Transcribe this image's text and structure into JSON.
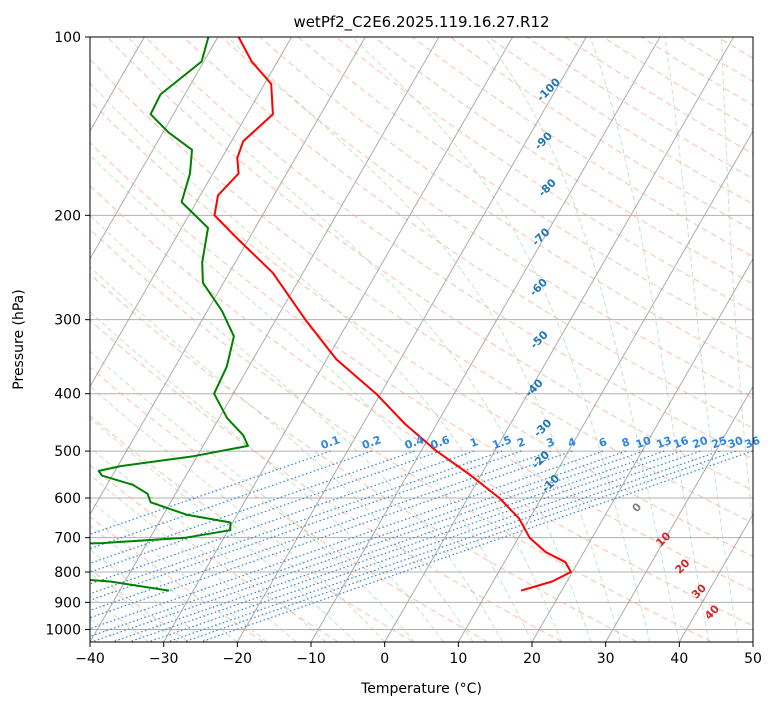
{
  "chart_data": {
    "type": "line",
    "diagram": "skew-T log-P",
    "title": "wetPf2_C2E6.2025.119.16.27.R12",
    "xlabel": "Temperature (°C)",
    "ylabel": "Pressure (hPa)",
    "xlim": [
      -40,
      50
    ],
    "ylim": [
      1050,
      100
    ],
    "y_scale": "log",
    "x_ticks": [
      -40,
      -30,
      -20,
      -10,
      0,
      10,
      20,
      30,
      40,
      50
    ],
    "x_tick_labels": [
      "−40",
      "−30",
      "−20",
      "−10",
      "0",
      "10",
      "20",
      "30",
      "40",
      "50"
    ],
    "y_ticks": [
      100,
      200,
      300,
      400,
      500,
      600,
      700,
      800,
      900,
      1000
    ],
    "y_tick_labels": [
      "100",
      "200",
      "300",
      "400",
      "500",
      "600",
      "700",
      "800",
      "900",
      "1000"
    ],
    "grid": true,
    "dry_adiabat_labels": [
      {
        "text": "-100",
        "p": 123,
        "t": -20.9
      },
      {
        "text": "-90",
        "p": 150,
        "t": -17.6
      },
      {
        "text": "-80",
        "p": 180,
        "t": -13.4
      },
      {
        "text": "-70",
        "p": 218,
        "t": -10.4
      },
      {
        "text": "-60",
        "p": 265,
        "t": -6.8
      },
      {
        "text": "-50",
        "p": 325,
        "t": -2.6
      },
      {
        "text": "-40",
        "p": 392,
        "t": 0.5
      },
      {
        "text": "-30",
        "p": 458,
        "t": 4.8
      },
      {
        "text": "-20",
        "p": 518,
        "t": 7.0
      },
      {
        "text": "-10",
        "p": 568,
        "t": 10.2
      }
    ],
    "moist_adiabat_labels": [
      {
        "text": "0",
        "p": 624,
        "t": 23.8,
        "color": "#7f7f7f"
      },
      {
        "text": "10",
        "p": 706,
        "t": 29.9,
        "color": "#d62728"
      },
      {
        "text": "20",
        "p": 784,
        "t": 34.6,
        "color": "#d62728"
      },
      {
        "text": "30",
        "p": 864,
        "t": 38.8,
        "color": "#d62728"
      },
      {
        "text": "40",
        "p": 937,
        "t": 42.2,
        "color": "#d62728"
      }
    ],
    "mixing_ratio_labels": [
      {
        "text": "0.1",
        "t": -22.3
      },
      {
        "text": "0.2",
        "t": -16.7
      },
      {
        "text": "0.4",
        "t": -10.9
      },
      {
        "text": "0.6",
        "t": -7.4
      },
      {
        "text": "1",
        "t": -2.8
      },
      {
        "text": "1.5",
        "t": 1.0
      },
      {
        "text": "2",
        "t": 3.6
      },
      {
        "text": "3",
        "t": 7.6
      },
      {
        "text": "4",
        "t": 10.5
      },
      {
        "text": "6",
        "t": 14.7
      },
      {
        "text": "8",
        "t": 17.8
      },
      {
        "text": "10",
        "t": 20.2
      },
      {
        "text": "13",
        "t": 23.0
      },
      {
        "text": "16",
        "t": 25.3
      },
      {
        "text": "20",
        "t": 27.9
      },
      {
        "text": "25",
        "t": 30.5
      },
      {
        "text": "30",
        "t": 32.7
      },
      {
        "text": "36",
        "t": 35.0
      }
    ],
    "series": [
      {
        "color": "#ff0000",
        "points": [
          {
            "p": 860,
            "t": 14.5
          },
          {
            "p": 830,
            "t": 18.0
          },
          {
            "p": 800,
            "t": 19.8
          },
          {
            "p": 770,
            "t": 18.3
          },
          {
            "p": 740,
            "t": 14.8
          },
          {
            "p": 700,
            "t": 11.5
          },
          {
            "p": 650,
            "t": 8.6
          },
          {
            "p": 600,
            "t": 4.3
          },
          {
            "p": 550,
            "t": -1.3
          },
          {
            "p": 500,
            "t": -7.9
          },
          {
            "p": 450,
            "t": -14.3
          },
          {
            "p": 400,
            "t": -20.6
          },
          {
            "p": 350,
            "t": -28.7
          },
          {
            "p": 300,
            "t": -36.0
          },
          {
            "p": 250,
            "t": -44.1
          },
          {
            "p": 220,
            "t": -51.3
          },
          {
            "p": 200,
            "t": -56.5
          },
          {
            "p": 185,
            "t": -57.6
          },
          {
            "p": 170,
            "t": -56.5
          },
          {
            "p": 160,
            "t": -57.9
          },
          {
            "p": 150,
            "t": -58.4
          },
          {
            "p": 135,
            "t": -56.5
          },
          {
            "p": 120,
            "t": -59.1
          },
          {
            "p": 110,
            "t": -63.5
          },
          {
            "p": 100,
            "t": -67.2
          }
        ]
      },
      {
        "color": "#008000",
        "points": [
          {
            "p": 860,
            "t": -33.3
          },
          {
            "p": 830,
            "t": -42.0
          },
          {
            "p": 800,
            "t": -60.6
          },
          {
            "p": 790,
            "t": -80.0
          },
          {
            "p": 750,
            "t": -90.0
          },
          {
            "p": 740,
            "t": -74.5
          },
          {
            "p": 725,
            "t": -63.5
          },
          {
            "p": 715,
            "t": -46.1
          },
          {
            "p": 700,
            "t": -35.2
          },
          {
            "p": 680,
            "t": -29.7
          },
          {
            "p": 660,
            "t": -30.3
          },
          {
            "p": 640,
            "t": -36.9
          },
          {
            "p": 610,
            "t": -42.7
          },
          {
            "p": 590,
            "t": -43.8
          },
          {
            "p": 570,
            "t": -46.5
          },
          {
            "p": 550,
            "t": -51.4
          },
          {
            "p": 540,
            "t": -52.2
          },
          {
            "p": 530,
            "t": -49.6
          },
          {
            "p": 510,
            "t": -40.5
          },
          {
            "p": 490,
            "t": -33.9
          },
          {
            "p": 470,
            "t": -35.4
          },
          {
            "p": 440,
            "t": -38.9
          },
          {
            "p": 400,
            "t": -42.6
          },
          {
            "p": 360,
            "t": -43.0
          },
          {
            "p": 320,
            "t": -44.4
          },
          {
            "p": 290,
            "t": -48.0
          },
          {
            "p": 260,
            "t": -52.8
          },
          {
            "p": 240,
            "t": -54.5
          },
          {
            "p": 210,
            "t": -56.4
          },
          {
            "p": 190,
            "t": -62.0
          },
          {
            "p": 170,
            "t": -63.1
          },
          {
            "p": 155,
            "t": -64.7
          },
          {
            "p": 145,
            "t": -69.2
          },
          {
            "p": 135,
            "t": -73.1
          },
          {
            "p": 125,
            "t": -73.3
          },
          {
            "p": 110,
            "t": -70.3
          },
          {
            "p": 100,
            "t": -71.3
          }
        ]
      }
    ]
  }
}
